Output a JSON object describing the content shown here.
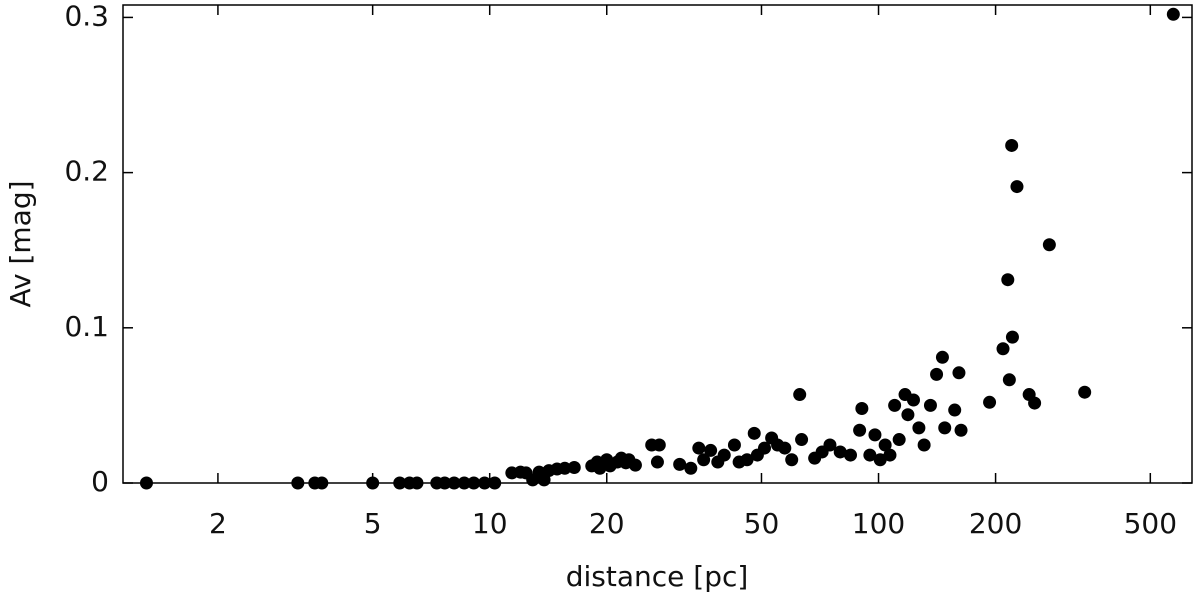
{
  "chart_data": {
    "type": "scatter",
    "xlabel": "distance [pc]",
    "ylabel": "Av [mag]",
    "xscale": "log",
    "color": "#000000",
    "xlim": [
      1.14,
      640
    ],
    "ylim": [
      0,
      0.308
    ],
    "xticks": [
      2,
      5,
      10,
      20,
      50,
      100,
      200,
      500
    ],
    "yticks": [
      0,
      0.1,
      0.2,
      0.3
    ],
    "x": [
      1.31,
      3.21,
      3.55,
      3.7,
      5.0,
      5.87,
      6.22,
      6.5,
      7.31,
      7.66,
      8.1,
      8.6,
      9.1,
      9.7,
      10.3,
      11.4,
      12.0,
      12.4,
      12.9,
      13.4,
      13.8,
      14.2,
      14.9,
      15.6,
      16.5,
      18.3,
      18.9,
      19.2,
      20.0,
      20.4,
      21.3,
      21.8,
      22.4,
      22.8,
      23.7,
      26.1,
      27.3,
      27.0,
      30.8,
      32.9,
      34.5,
      35.5,
      37.0,
      38.6,
      40.1,
      42.6,
      43.8,
      45.9,
      47.9,
      48.8,
      50.9,
      53.1,
      55.0,
      57.4,
      59.8,
      62.7,
      63.4,
      68.5,
      71.6,
      75.0,
      79.7,
      84.7,
      89.4,
      90.6,
      95.0,
      97.9,
      101,
      104,
      107,
      110,
      113,
      117,
      119,
      123,
      127,
      131,
      136,
      141,
      146,
      148,
      157,
      161,
      163,
      193,
      209,
      215,
      220,
      221,
      217,
      227,
      244,
      252,
      275,
      339,
      573
    ],
    "values": [
      0,
      0,
      0,
      0,
      0,
      0,
      0,
      0,
      0,
      0,
      0,
      0,
      0,
      0,
      0,
      0.0065,
      0.007,
      0.0065,
      0.002,
      0.007,
      0.002,
      0.008,
      0.009,
      0.0095,
      0.01,
      0.011,
      0.0135,
      0.0095,
      0.015,
      0.011,
      0.0135,
      0.016,
      0.013,
      0.015,
      0.0115,
      0.0245,
      0.0245,
      0.0135,
      0.012,
      0.0095,
      0.0225,
      0.015,
      0.021,
      0.0135,
      0.018,
      0.0245,
      0.0135,
      0.015,
      0.032,
      0.018,
      0.0225,
      0.029,
      0.0245,
      0.0225,
      0.015,
      0.057,
      0.028,
      0.016,
      0.02,
      0.0245,
      0.02,
      0.018,
      0.034,
      0.048,
      0.018,
      0.031,
      0.015,
      0.0245,
      0.018,
      0.05,
      0.028,
      0.057,
      0.044,
      0.0535,
      0.0355,
      0.0245,
      0.05,
      0.07,
      0.081,
      0.0355,
      0.047,
      0.071,
      0.034,
      0.052,
      0.0865,
      0.131,
      0.2175,
      0.094,
      0.0665,
      0.191,
      0.057,
      0.0515,
      0.1535,
      0.0585,
      0.302
    ]
  }
}
